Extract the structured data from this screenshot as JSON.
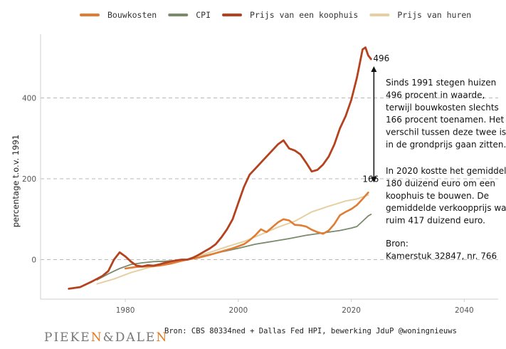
{
  "chart_data": {
    "type": "line",
    "ylabel": "percentage t.o.v. 1991",
    "xlabel": "",
    "xlim": [
      1965,
      2046
    ],
    "ylim": [
      -100,
      550
    ],
    "xticks": [
      1980,
      2000,
      2020,
      2040
    ],
    "yticks": [
      0,
      200,
      400
    ],
    "gridlines": "horizontal dashed",
    "legend": "top",
    "series": [
      {
        "name": "Bouwkosten",
        "color": "#e07d35",
        "points": [
          [
            1980,
            -22
          ],
          [
            1982,
            -18
          ],
          [
            1984,
            -17
          ],
          [
            1986,
            -15
          ],
          [
            1988,
            -10
          ],
          [
            1990,
            -3
          ],
          [
            1991,
            0
          ],
          [
            1993,
            5
          ],
          [
            1995,
            12
          ],
          [
            1997,
            20
          ],
          [
            1999,
            28
          ],
          [
            2001,
            38
          ],
          [
            2002,
            48
          ],
          [
            2003,
            60
          ],
          [
            2004,
            75
          ],
          [
            2005,
            68
          ],
          [
            2006,
            80
          ],
          [
            2007,
            92
          ],
          [
            2008,
            100
          ],
          [
            2009,
            97
          ],
          [
            2010,
            86
          ],
          [
            2011,
            85
          ],
          [
            2012,
            82
          ],
          [
            2013,
            74
          ],
          [
            2014,
            68
          ],
          [
            2015,
            64
          ],
          [
            2016,
            72
          ],
          [
            2017,
            88
          ],
          [
            2018,
            110
          ],
          [
            2019,
            118
          ],
          [
            2020,
            125
          ],
          [
            2021,
            135
          ],
          [
            2022,
            150
          ],
          [
            2023,
            166
          ]
        ]
      },
      {
        "name": "CPI",
        "color": "#7a8a6a",
        "points": [
          [
            1975,
            -50
          ],
          [
            1977,
            -35
          ],
          [
            1979,
            -22
          ],
          [
            1981,
            -12
          ],
          [
            1983,
            -8
          ],
          [
            1985,
            -5
          ],
          [
            1987,
            -4
          ],
          [
            1989,
            -2
          ],
          [
            1991,
            0
          ],
          [
            1995,
            13
          ],
          [
            2000,
            28
          ],
          [
            2003,
            38
          ],
          [
            2006,
            45
          ],
          [
            2009,
            52
          ],
          [
            2012,
            60
          ],
          [
            2015,
            66
          ],
          [
            2018,
            72
          ],
          [
            2020,
            78
          ],
          [
            2021,
            82
          ],
          [
            2022,
            95
          ],
          [
            2023,
            108
          ],
          [
            2023.5,
            112
          ]
        ]
      },
      {
        "name": "Prijs van een koophuis",
        "color": "#b5421e",
        "points": [
          [
            1970,
            -72
          ],
          [
            1972,
            -68
          ],
          [
            1974,
            -55
          ],
          [
            1976,
            -40
          ],
          [
            1977,
            -28
          ],
          [
            1978,
            0
          ],
          [
            1979,
            18
          ],
          [
            1980,
            8
          ],
          [
            1981,
            -5
          ],
          [
            1982,
            -15
          ],
          [
            1983,
            -17
          ],
          [
            1984,
            -14
          ],
          [
            1985,
            -15
          ],
          [
            1986,
            -12
          ],
          [
            1987,
            -8
          ],
          [
            1988,
            -5
          ],
          [
            1989,
            -2
          ],
          [
            1990,
            0
          ],
          [
            1991,
            0
          ],
          [
            1992,
            5
          ],
          [
            1993,
            12
          ],
          [
            1994,
            20
          ],
          [
            1995,
            28
          ],
          [
            1996,
            38
          ],
          [
            1997,
            55
          ],
          [
            1998,
            75
          ],
          [
            1999,
            100
          ],
          [
            2000,
            140
          ],
          [
            2001,
            180
          ],
          [
            2002,
            210
          ],
          [
            2003,
            225
          ],
          [
            2004,
            240
          ],
          [
            2005,
            255
          ],
          [
            2006,
            270
          ],
          [
            2007,
            285
          ],
          [
            2008,
            295
          ],
          [
            2009,
            275
          ],
          [
            2010,
            270
          ],
          [
            2011,
            260
          ],
          [
            2012,
            240
          ],
          [
            2013,
            218
          ],
          [
            2014,
            222
          ],
          [
            2015,
            235
          ],
          [
            2016,
            255
          ],
          [
            2017,
            285
          ],
          [
            2018,
            325
          ],
          [
            2019,
            355
          ],
          [
            2020,
            395
          ],
          [
            2021,
            450
          ],
          [
            2022,
            520
          ],
          [
            2022.5,
            525
          ],
          [
            2023,
            505
          ],
          [
            2023.5,
            496
          ]
        ]
      },
      {
        "name": "Prijs van huren",
        "color": "#e6cfa3",
        "points": [
          [
            1975,
            -60
          ],
          [
            1978,
            -48
          ],
          [
            1981,
            -32
          ],
          [
            1984,
            -20
          ],
          [
            1987,
            -12
          ],
          [
            1989,
            -6
          ],
          [
            1991,
            0
          ],
          [
            1995,
            18
          ],
          [
            1998,
            32
          ],
          [
            2001,
            45
          ],
          [
            2004,
            62
          ],
          [
            2007,
            80
          ],
          [
            2010,
            95
          ],
          [
            2013,
            118
          ],
          [
            2016,
            132
          ],
          [
            2019,
            145
          ],
          [
            2021,
            150
          ],
          [
            2023,
            160
          ]
        ]
      }
    ],
    "annotations": {
      "value_496": "496",
      "value_166": "166",
      "arrow_from": 166,
      "arrow_to": 496,
      "arrow_x": 2024
    }
  },
  "annotation_text": {
    "lines_1": [
      "Sinds 1991 stegen huizen",
      "496 procent in waarde,",
      "terwijl bouwkosten slechts",
      "166 procent toenamen. Het",
      "verschil tussen deze twee is",
      "in de grondprijs gaan zitten."
    ],
    "lines_2": [
      "In 2020 kostte het gemiddeld",
      "180 duizend euro om een",
      "koophuis te bouwen. De",
      "gemiddelde verkoopprijs was",
      "ruim 417 duizend euro."
    ],
    "lines_3": [
      "Bron:",
      "Kamerstuk 32847, nr. 766"
    ]
  },
  "footer": {
    "source": "Bron: CBS 80334ned + Dallas Fed HPI, bewerking JduP @woningnieuws",
    "logo_part1": "PIEKE",
    "logo_n1": "N",
    "logo_part2": "&DALE",
    "logo_n2": "N"
  }
}
